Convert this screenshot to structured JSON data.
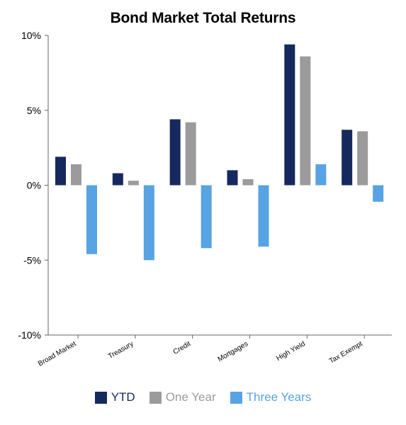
{
  "chart_data": {
    "type": "bar",
    "title": "Bond Market Total Returns",
    "categories": [
      "Broad Market",
      "Treasury",
      "Credit",
      "Mortgages",
      "High Yield",
      "Tax Exempt"
    ],
    "series": [
      {
        "name": "YTD",
        "color": "#15295e",
        "values": [
          1.9,
          0.8,
          4.4,
          1.0,
          9.4,
          3.7
        ]
      },
      {
        "name": "One Year",
        "color": "#9b9b9b",
        "values": [
          1.4,
          0.3,
          4.2,
          0.4,
          8.6,
          3.6
        ]
      },
      {
        "name": "Three Years",
        "color": "#57a3e3",
        "values": [
          -4.6,
          -5.0,
          -4.2,
          -4.1,
          1.4,
          -1.1
        ]
      }
    ],
    "ylim": [
      -10,
      10
    ],
    "yticks": [
      -10,
      -5,
      0,
      5,
      10
    ],
    "ytick_labels": [
      "-10%",
      "-5%",
      "0%",
      "5%",
      "10%"
    ],
    "grid": false,
    "legend_position": "bottom"
  }
}
